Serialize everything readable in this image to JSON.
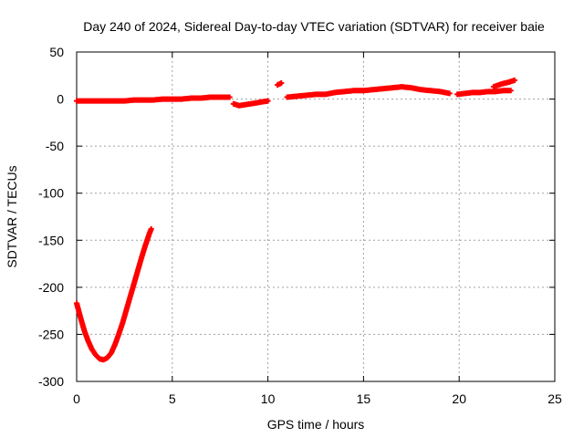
{
  "chart_data": {
    "type": "scatter",
    "title": "Day 240 of 2024, Sidereal Day-to-day VTEC variation (SDTVAR) for receiver baie",
    "xlabel": "GPS time / hours",
    "ylabel": "SDTVAR / TECUs",
    "xlim": [
      0,
      25
    ],
    "ylim": [
      -300,
      50
    ],
    "xticks": [
      0,
      5,
      10,
      15,
      20,
      25
    ],
    "yticks": [
      -300,
      -250,
      -200,
      -150,
      -100,
      -50,
      0,
      50
    ],
    "grid": true,
    "series": [
      {
        "name": "SDTVAR",
        "color": "#ff0000",
        "marker": "plus",
        "segments": [
          {
            "x": [
              0.0,
              0.2,
              0.4,
              0.6,
              0.8,
              1.0,
              1.2,
              1.4,
              1.6,
              1.8,
              2.0,
              2.2,
              2.4,
              2.6,
              2.8,
              3.0,
              3.2,
              3.4,
              3.6,
              3.8,
              3.9
            ],
            "y": [
              -217,
              -232,
              -246,
              -257,
              -266,
              -272,
              -276,
              -277,
              -275,
              -270,
              -261,
              -250,
              -238,
              -224,
              -210,
              -196,
              -182,
              -168,
              -155,
              -143,
              -138
            ]
          },
          {
            "x": [
              0.0,
              0.5,
              1.0,
              1.5,
              2.0,
              2.5,
              3.0,
              3.5,
              4.0,
              4.5,
              5.0,
              5.5,
              6.0,
              6.5,
              7.0,
              7.5,
              8.0
            ],
            "y": [
              -2,
              -2,
              -2,
              -2,
              -2,
              -2,
              -1,
              -1,
              -1,
              0,
              0,
              0,
              1,
              1,
              2,
              2,
              2
            ]
          },
          {
            "x": [
              8.2,
              8.5,
              8.8,
              9.1,
              9.4,
              9.7,
              10.0
            ],
            "y": [
              -5,
              -7,
              -6,
              -5,
              -4,
              -3,
              -2
            ]
          },
          {
            "x": [
              10.5,
              10.7
            ],
            "y": [
              15,
              17
            ]
          },
          {
            "x": [
              11.0,
              11.5,
              12.0,
              12.5,
              13.0,
              13.5,
              14.0,
              14.5,
              15.0,
              15.5,
              16.0,
              16.5,
              17.0,
              17.5,
              18.0,
              18.5,
              19.0,
              19.5
            ],
            "y": [
              2,
              3,
              4,
              5,
              5,
              7,
              8,
              9,
              9,
              10,
              11,
              12,
              13,
              12,
              10,
              9,
              8,
              6
            ]
          },
          {
            "x": [
              19.9,
              20.3,
              20.7,
              21.1,
              21.5,
              21.9,
              22.3,
              22.7
            ],
            "y": [
              5,
              6,
              7,
              7,
              8,
              8,
              9,
              9
            ]
          },
          {
            "x": [
              21.8,
              22.2,
              22.6,
              22.9
            ],
            "y": [
              13,
              16,
              18,
              20
            ]
          }
        ]
      }
    ]
  }
}
